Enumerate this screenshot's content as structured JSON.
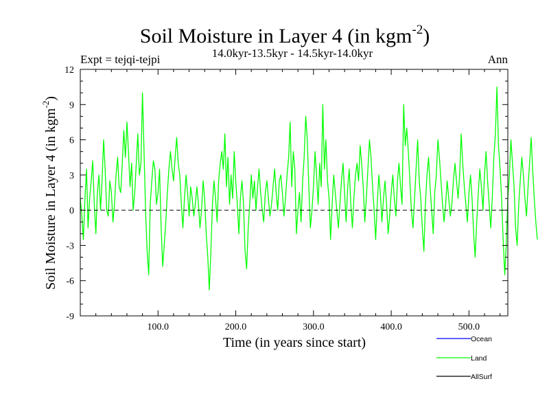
{
  "chart_data": {
    "type": "line",
    "title": "Soil Moisture in Layer 4 (in kgm",
    "title_sup": "-2",
    "title_end": ")",
    "subtitle": "14.0kyr-13.5kyr - 14.5kyr-14.0kyr",
    "expt_label": "Expt = tejqi-tejpi",
    "season_label": "Ann",
    "xlabel": "Time (in years since start)",
    "ylabel": "Soil Moisture in Layer 4 (in kgm",
    "ylabel_sup": "-2",
    "ylabel_end": ")",
    "xlim": [
      0,
      550
    ],
    "ylim": [
      -9,
      12
    ],
    "x_ticks": [
      100,
      200,
      300,
      400,
      500
    ],
    "x_tick_labels": [
      "100.0",
      "200.0",
      "300.0",
      "400.0",
      "500.0"
    ],
    "y_ticks": [
      -9,
      -6,
      -3,
      0,
      3,
      6,
      9,
      12
    ],
    "y_tick_labels": [
      "-9",
      "-6",
      "-3",
      "0",
      "3",
      "6",
      "9",
      "12"
    ],
    "zero_line": 0,
    "legend": [
      {
        "name": "Ocean",
        "color": "#0000ff"
      },
      {
        "name": "Land",
        "color": "#00ff00"
      },
      {
        "name": "AllSurf",
        "color": "#000000"
      }
    ],
    "series": [
      {
        "name": "Land",
        "color": "#00ff00",
        "x_start": 0,
        "x_step": 2,
        "values": [
          1.0,
          -0.5,
          -2.5,
          1.0,
          3.5,
          -1.5,
          1.0,
          2.5,
          4.2,
          0.5,
          -2.0,
          1.5,
          3.0,
          0.0,
          2.5,
          6.0,
          3.5,
          0.0,
          -0.5,
          2.5,
          1.5,
          -1.0,
          0.5,
          3.0,
          4.5,
          2.0,
          1.5,
          4.0,
          6.8,
          4.5,
          7.5,
          5.0,
          2.0,
          4.0,
          0.0,
          1.5,
          4.0,
          6.5,
          3.0,
          4.0,
          10.0,
          5.0,
          0.0,
          -3.5,
          -5.5,
          0.5,
          2.5,
          4.2,
          3.5,
          0.5,
          1.5,
          3.5,
          -1.5,
          -4.8,
          -3.0,
          -1.0,
          1.5,
          3.5,
          5.0,
          3.5,
          2.5,
          4.5,
          6.2,
          4.0,
          3.0,
          0.5,
          -1.5,
          1.0,
          3.0,
          1.5,
          -0.5,
          2.0,
          1.0,
          -0.5,
          0.5,
          2.0,
          0.5,
          -1.5,
          0.0,
          2.5,
          1.0,
          -2.0,
          -4.0,
          -6.8,
          -3.5,
          0.5,
          2.5,
          1.0,
          -1.0,
          2.5,
          4.0,
          5.0,
          3.5,
          6.5,
          2.0,
          4.5,
          0.5,
          3.0,
          1.0,
          5.0,
          2.5,
          0.5,
          -2.0,
          1.0,
          2.5,
          0.5,
          -3.5,
          -5.0,
          -1.5,
          0.5,
          3.0,
          1.0,
          2.5,
          0.0,
          2.0,
          3.5,
          1.5,
          0.0,
          -1.0,
          1.5,
          2.5,
          1.0,
          -0.5,
          0.5,
          2.0,
          3.5,
          1.5,
          0.0,
          2.5,
          3.0,
          1.5,
          -0.5,
          1.0,
          3.0,
          4.5,
          7.5,
          2.0,
          5.0,
          3.5,
          -2.0,
          0.0,
          1.5,
          -1.0,
          2.5,
          4.5,
          8.0,
          6.0,
          2.0,
          -1.5,
          0.0,
          2.0,
          5.0,
          3.0,
          0.5,
          4.0,
          2.0,
          9.0,
          3.5,
          6.0,
          2.5,
          1.0,
          -2.5,
          0.5,
          3.0,
          1.5,
          0.0,
          -1.5,
          0.5,
          2.5,
          4.0,
          1.5,
          -1.0,
          2.0,
          3.5,
          0.5,
          -1.5,
          1.0,
          3.0,
          4.0,
          2.5,
          5.5,
          4.0,
          2.0,
          -1.0,
          1.0,
          3.5,
          6.0,
          4.5,
          2.0,
          0.0,
          -2.5,
          0.5,
          3.0,
          1.5,
          -1.0,
          1.0,
          2.5,
          0.5,
          -2.0,
          -0.5,
          1.5,
          3.0,
          1.0,
          -0.5,
          2.5,
          4.0,
          2.0,
          0.5,
          9.0,
          5.5,
          7.0,
          5.0,
          2.5,
          0.0,
          -1.5,
          1.0,
          3.5,
          6.0,
          2.5,
          1.0,
          -1.5,
          -3.5,
          0.5,
          3.0,
          4.5,
          2.0,
          0.0,
          -2.0,
          1.5,
          3.0,
          6.0,
          4.5,
          2.5,
          0.5,
          -1.0,
          0.5,
          2.5,
          1.0,
          -0.5,
          0.5,
          2.5,
          4.0,
          2.5,
          1.0,
          3.0,
          6.5,
          4.0,
          2.0,
          0.5,
          -1.0,
          1.5,
          3.0,
          1.0,
          -2.0,
          -4.0,
          -1.0,
          1.5,
          3.5,
          2.0,
          0.0,
          3.0,
          5.0,
          2.5,
          0.5,
          -1.5,
          1.0,
          4.5,
          6.5,
          10.5,
          5.5,
          3.5,
          1.0,
          -2.5,
          -5.5,
          -3.0,
          1.0,
          3.0,
          6.0,
          4.0,
          2.0,
          -1.5,
          -3.0,
          0.5,
          2.5,
          4.5,
          3.0,
          1.0,
          -0.5,
          2.0,
          4.0,
          6.2,
          3.5,
          1.0,
          -1.0,
          -2.5
        ]
      }
    ]
  }
}
